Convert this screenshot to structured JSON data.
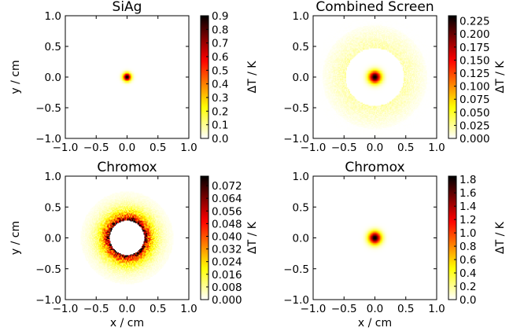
{
  "figure": {
    "panels": [
      {
        "title": "SiAg",
        "xlabel": "",
        "ylabel": "y / cm",
        "x_ticks": [
          "−1.0",
          "−0.5",
          "0.0",
          "0.5",
          "1.0"
        ],
        "y_ticks": [
          "−1.0",
          "−0.5",
          "0.0",
          "0.5",
          "1.0"
        ],
        "colorbar": {
          "label": "ΔT / K",
          "ticks": [
            "0.0",
            "0.1",
            "0.2",
            "0.3",
            "0.4",
            "0.5",
            "0.6",
            "0.7",
            "0.8",
            "0.9"
          ]
        }
      },
      {
        "title": "Combined Screen",
        "xlabel": "",
        "ylabel": "",
        "x_ticks": [
          "−1.0",
          "−0.5",
          "0.0",
          "0.5",
          "1.0"
        ],
        "y_ticks": [
          "−1.0",
          "−0.5",
          "0.0",
          "0.5",
          "1.0"
        ],
        "colorbar": {
          "label": "ΔT / K",
          "ticks": [
            "0.000",
            "0.025",
            "0.050",
            "0.075",
            "0.100",
            "0.125",
            "0.150",
            "0.175",
            "0.200",
            "0.225"
          ]
        }
      },
      {
        "title": "Chromox",
        "xlabel": "x / cm",
        "ylabel": "y / cm",
        "x_ticks": [
          "−1.0",
          "−0.5",
          "0.0",
          "0.5",
          "1.0"
        ],
        "y_ticks": [
          "−1.0",
          "−0.5",
          "0.0",
          "0.5",
          "1.0"
        ],
        "colorbar": {
          "label": "ΔT / K",
          "ticks": [
            "0.000",
            "0.008",
            "0.016",
            "0.024",
            "0.032",
            "0.040",
            "0.048",
            "0.056",
            "0.064",
            "0.072"
          ]
        }
      },
      {
        "title": "Chromox",
        "xlabel": "x / cm",
        "ylabel": "",
        "x_ticks": [
          "−1.0",
          "−0.5",
          "0.0",
          "0.5",
          "1.0"
        ],
        "y_ticks": [
          "−1.0",
          "−0.5",
          "0.0",
          "0.5",
          "1.0"
        ],
        "colorbar": {
          "label": "ΔT / K",
          "ticks": [
            "0.0",
            "0.2",
            "0.4",
            "0.6",
            "0.8",
            "1.0",
            "1.2",
            "1.4",
            "1.6",
            "1.8"
          ]
        }
      }
    ]
  },
  "chart_data": [
    {
      "type": "heatmap",
      "title": "SiAg",
      "xlabel": "",
      "ylabel": "y / cm",
      "xlim": [
        -1.0,
        1.0
      ],
      "ylim": [
        -1.0,
        1.0
      ],
      "colorbar_label": "ΔT / K",
      "colorbar_range": [
        0.0,
        0.9
      ],
      "colormap": "hot_r",
      "distribution": {
        "shape": "gaussian_spot",
        "center": [
          0.0,
          0.0
        ],
        "sigma_cm": 0.045,
        "peak": 0.9
      }
    },
    {
      "type": "heatmap",
      "title": "Combined Screen",
      "xlabel": "",
      "ylabel": "",
      "xlim": [
        -1.0,
        1.0
      ],
      "ylim": [
        -1.0,
        1.0
      ],
      "colorbar_label": "ΔT / K",
      "colorbar_range": [
        0.0,
        0.235
      ],
      "colormap": "hot_r",
      "distribution": {
        "shape": "spot_with_halo_and_hole",
        "center": [
          0.0,
          0.0
        ],
        "sigma_cm": 0.07,
        "peak": 0.235,
        "hole_radius_cm": 0.47,
        "halo_level": 0.02,
        "halo_extent_cm": 0.85
      }
    },
    {
      "type": "heatmap",
      "title": "Chromox",
      "xlabel": "x / cm",
      "ylabel": "y / cm",
      "xlim": [
        -1.0,
        1.0
      ],
      "ylim": [
        -1.0,
        1.0
      ],
      "colorbar_label": "ΔT / K",
      "colorbar_range": [
        0.0,
        0.078
      ],
      "colormap": "hot_r",
      "distribution": {
        "shape": "ring_with_hole",
        "center": [
          0.0,
          0.0
        ],
        "hole_radius_cm": 0.28,
        "peak": 0.078,
        "falloff_cm": 0.2,
        "extent_cm": 0.75
      }
    },
    {
      "type": "heatmap",
      "title": "Chromox",
      "xlabel": "x / cm",
      "ylabel": "",
      "xlim": [
        -1.0,
        1.0
      ],
      "ylim": [
        -1.0,
        1.0
      ],
      "colorbar_label": "ΔT / K",
      "colorbar_range": [
        0.0,
        1.85
      ],
      "colormap": "hot_r",
      "distribution": {
        "shape": "gaussian_spot",
        "center": [
          0.0,
          0.0
        ],
        "sigma_cm": 0.07,
        "peak": 1.85
      }
    }
  ]
}
